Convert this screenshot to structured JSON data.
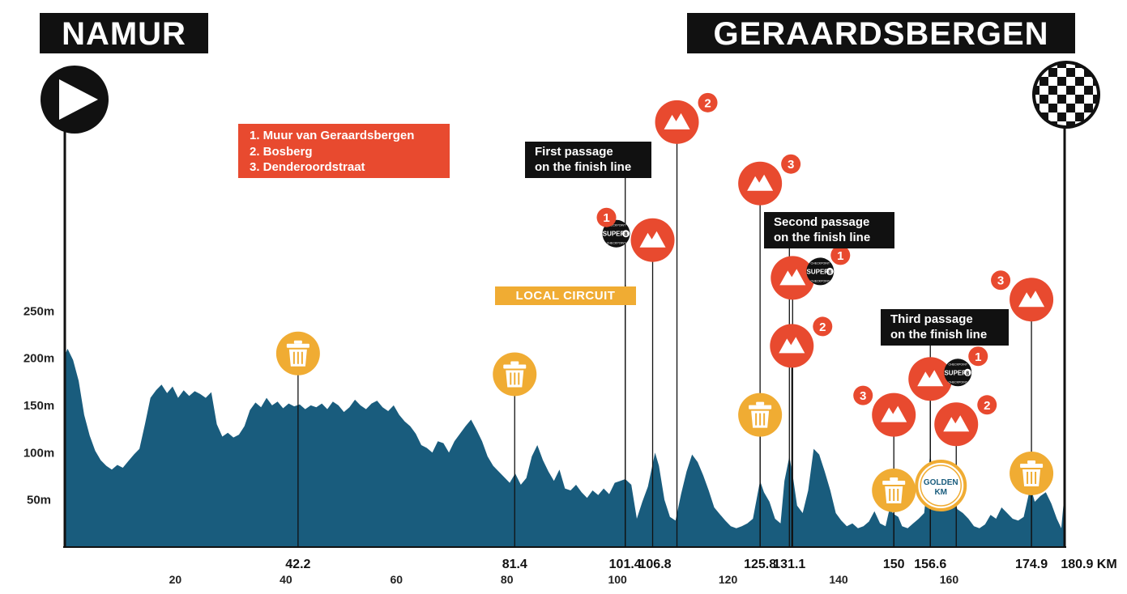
{
  "stage": {
    "start": "NAMUR",
    "finish": "GERAARDSBERGEN"
  },
  "legend": [
    "1. Muur van Geraardsbergen",
    "2. Bosberg",
    "3. Denderoordstraat"
  ],
  "passages": {
    "first": [
      "First passage",
      "on the finish line"
    ],
    "second": [
      "Second passage",
      "on the finish line"
    ],
    "third": [
      "Third passage",
      "on the finish line"
    ]
  },
  "local_circuit_label": "LOCAL CIRCUIT",
  "golden_km_label": [
    "GOLDEN",
    "KM"
  ],
  "super8": {
    "top": "CHECKPOINT",
    "main": "SUPER",
    "digit": "8",
    "bottom": "CHECKPOINT"
  },
  "colors": {
    "profile": "#195c7d",
    "climb": "#e84a2f",
    "feed": "#f0ac33",
    "black": "#111111",
    "golden_ring": "#f0ac33",
    "golden_text": "#195c7d"
  },
  "icons": {
    "start": "play-icon",
    "finish": "checkered-flag-icon",
    "climb": "mountain-icon",
    "feed": "trash-can-icon",
    "super8": "super8-checkpoint-icon",
    "golden_km": "golden-km-icon"
  },
  "chart_data": {
    "type": "area",
    "title": "",
    "xlabel": "",
    "ylabel": "",
    "x_unit": "KM",
    "xlim": [
      0,
      180.9
    ],
    "ylim": [
      0,
      250
    ],
    "y_ticks": [
      50,
      100,
      150,
      200,
      250
    ],
    "y_tick_labels": [
      "50m",
      "100m",
      "150m",
      "200m",
      "250m"
    ],
    "x_ticks_minor": [
      20,
      40,
      60,
      80,
      100,
      120,
      140,
      160
    ],
    "x_ticks_major": [
      42.2,
      81.4,
      101.4,
      106.8,
      125.8,
      131.1,
      150,
      156.6,
      174.9,
      180.9
    ],
    "x_major_labels": [
      "42.2",
      "81.4",
      "101.4",
      "106.8",
      "125.8",
      "131.1",
      "150",
      "156.6",
      "174.9",
      "180.9 KM"
    ],
    "elevation": [
      [
        0,
        203
      ],
      [
        0.5,
        210
      ],
      [
        1.5,
        198
      ],
      [
        2.5,
        176
      ],
      [
        3.5,
        140
      ],
      [
        4.5,
        118
      ],
      [
        5.5,
        102
      ],
      [
        6.5,
        92
      ],
      [
        7.5,
        86
      ],
      [
        8.5,
        82
      ],
      [
        9.5,
        87
      ],
      [
        10.5,
        84
      ],
      [
        11.5,
        91
      ],
      [
        12.5,
        98
      ],
      [
        13.5,
        104
      ],
      [
        14.5,
        130
      ],
      [
        15.5,
        158
      ],
      [
        16.5,
        166
      ],
      [
        17.5,
        172
      ],
      [
        18.5,
        163
      ],
      [
        19.5,
        170
      ],
      [
        20.5,
        158
      ],
      [
        21.5,
        166
      ],
      [
        22.5,
        160
      ],
      [
        23.5,
        165
      ],
      [
        24.5,
        162
      ],
      [
        25.5,
        158
      ],
      [
        26.5,
        164
      ],
      [
        27.5,
        130
      ],
      [
        28.5,
        117
      ],
      [
        29.5,
        121
      ],
      [
        30.5,
        116
      ],
      [
        31.5,
        119
      ],
      [
        32.5,
        128
      ],
      [
        33.5,
        145
      ],
      [
        34.5,
        153
      ],
      [
        35.5,
        148
      ],
      [
        36.5,
        158
      ],
      [
        37.5,
        150
      ],
      [
        38.5,
        154
      ],
      [
        39.5,
        147
      ],
      [
        40.5,
        152
      ],
      [
        41.5,
        149
      ],
      [
        42.5,
        151
      ],
      [
        43.5,
        146
      ],
      [
        44.5,
        150
      ],
      [
        45.5,
        148
      ],
      [
        46.5,
        152
      ],
      [
        47.5,
        146
      ],
      [
        48.5,
        154
      ],
      [
        49.5,
        150
      ],
      [
        50.5,
        143
      ],
      [
        51.5,
        148
      ],
      [
        52.5,
        156
      ],
      [
        53.5,
        150
      ],
      [
        54.5,
        146
      ],
      [
        55.5,
        152
      ],
      [
        56.5,
        155
      ],
      [
        57.5,
        148
      ],
      [
        58.5,
        144
      ],
      [
        59.5,
        150
      ],
      [
        60.5,
        140
      ],
      [
        61.5,
        133
      ],
      [
        62.5,
        128
      ],
      [
        63.5,
        120
      ],
      [
        64.5,
        108
      ],
      [
        65.5,
        105
      ],
      [
        66.5,
        100
      ],
      [
        67.5,
        112
      ],
      [
        68.5,
        110
      ],
      [
        69.5,
        100
      ],
      [
        70.5,
        112
      ],
      [
        71.5,
        120
      ],
      [
        72.5,
        128
      ],
      [
        73.5,
        135
      ],
      [
        74.5,
        124
      ],
      [
        75.5,
        112
      ],
      [
        76.5,
        96
      ],
      [
        77.5,
        86
      ],
      [
        78.5,
        80
      ],
      [
        79.5,
        74
      ],
      [
        80.5,
        68
      ],
      [
        81.5,
        78
      ],
      [
        82.5,
        66
      ],
      [
        83.5,
        73
      ],
      [
        84.5,
        96
      ],
      [
        85.5,
        108
      ],
      [
        86.5,
        92
      ],
      [
        87.5,
        80
      ],
      [
        88.5,
        70
      ],
      [
        89.5,
        82
      ],
      [
        90.5,
        62
      ],
      [
        91.5,
        60
      ],
      [
        92.5,
        66
      ],
      [
        93.5,
        58
      ],
      [
        94.5,
        52
      ],
      [
        95.5,
        60
      ],
      [
        96.5,
        55
      ],
      [
        97.5,
        62
      ],
      [
        98.5,
        56
      ],
      [
        99.5,
        68
      ],
      [
        100.5,
        70
      ],
      [
        101.4,
        72
      ],
      [
        102.5,
        66
      ],
      [
        103.5,
        30
      ],
      [
        104.5,
        48
      ],
      [
        105.5,
        64
      ],
      [
        106.8,
        100
      ],
      [
        107.5,
        86
      ],
      [
        108.5,
        50
      ],
      [
        109.5,
        32
      ],
      [
        110.5,
        28
      ],
      [
        111.5,
        56
      ],
      [
        112.5,
        80
      ],
      [
        113.5,
        98
      ],
      [
        114.5,
        90
      ],
      [
        115.5,
        76
      ],
      [
        116.5,
        60
      ],
      [
        117.5,
        42
      ],
      [
        118.5,
        35
      ],
      [
        119.5,
        28
      ],
      [
        120.5,
        22
      ],
      [
        121.5,
        20
      ],
      [
        122.5,
        22
      ],
      [
        123.5,
        25
      ],
      [
        124.5,
        30
      ],
      [
        125.8,
        70
      ],
      [
        126.5,
        58
      ],
      [
        127.5,
        48
      ],
      [
        128.5,
        30
      ],
      [
        129.5,
        25
      ],
      [
        130.2,
        70
      ],
      [
        131.1,
        96
      ],
      [
        131.8,
        72
      ],
      [
        132.5,
        44
      ],
      [
        133.5,
        36
      ],
      [
        134.5,
        60
      ],
      [
        135.5,
        104
      ],
      [
        136.5,
        98
      ],
      [
        137.5,
        80
      ],
      [
        138.5,
        60
      ],
      [
        139.5,
        36
      ],
      [
        140.5,
        28
      ],
      [
        141.5,
        22
      ],
      [
        142.5,
        25
      ],
      [
        143.5,
        20
      ],
      [
        144.5,
        22
      ],
      [
        145.5,
        27
      ],
      [
        146.5,
        38
      ],
      [
        147.5,
        25
      ],
      [
        148.5,
        22
      ],
      [
        149.2,
        40
      ],
      [
        150,
        35
      ],
      [
        150.8,
        32
      ],
      [
        151.5,
        22
      ],
      [
        152.5,
        20
      ],
      [
        153.5,
        25
      ],
      [
        154.5,
        30
      ],
      [
        155.5,
        36
      ],
      [
        156.6,
        100
      ],
      [
        157.3,
        60
      ],
      [
        158.2,
        88
      ],
      [
        158.8,
        50
      ],
      [
        159.5,
        62
      ],
      [
        160.5,
        52
      ],
      [
        161.5,
        40
      ],
      [
        162.5,
        36
      ],
      [
        163.5,
        30
      ],
      [
        164.5,
        22
      ],
      [
        165.5,
        20
      ],
      [
        166.5,
        24
      ],
      [
        167.5,
        34
      ],
      [
        168.5,
        30
      ],
      [
        169.5,
        42
      ],
      [
        170.5,
        36
      ],
      [
        171.5,
        30
      ],
      [
        172.5,
        28
      ],
      [
        173.5,
        32
      ],
      [
        174.5,
        58
      ],
      [
        174.9,
        60
      ],
      [
        175.5,
        48
      ],
      [
        176.5,
        54
      ],
      [
        177.5,
        58
      ],
      [
        178.5,
        46
      ],
      [
        179.5,
        30
      ],
      [
        180.3,
        20
      ],
      [
        180.9,
        58
      ]
    ],
    "climbs": [
      {
        "km": 106.8,
        "num": "1",
        "num_side": "left",
        "super8": true,
        "head_elev": 325
      },
      {
        "km": 106.8,
        "num": "2",
        "num_side": "right",
        "super8": false,
        "head_elev": 450
      },
      {
        "km": 125.8,
        "num": "3",
        "num_side": "right",
        "super8": false,
        "head_elev": 385
      },
      {
        "km": 131.1,
        "num": "1",
        "num_side": "right",
        "super8": true,
        "head_elev": 285
      },
      {
        "km": 131.1,
        "num": "2",
        "num_side": "right",
        "super8": false,
        "head_elev": 213
      },
      {
        "km": 150,
        "num": "3",
        "num_side": "left",
        "super8": false,
        "head_elev": 140
      },
      {
        "km": 156.6,
        "num": "1",
        "num_side": "right",
        "super8": true,
        "head_elev": 178
      },
      {
        "km": 156.6,
        "num": "2",
        "num_side": "right",
        "super8": false,
        "head_elev": 130
      },
      {
        "km": 174.9,
        "num": "3",
        "num_side": "left",
        "super8": false,
        "head_elev": 262
      }
    ],
    "feed_zones": [
      {
        "km": 42.2,
        "head_elev": 205
      },
      {
        "km": 81.4,
        "head_elev": 183
      },
      {
        "km": 125.8,
        "head_elev": 140
      },
      {
        "km": 150,
        "head_elev": 60
      },
      {
        "km": 174.9,
        "head_elev": 78
      }
    ],
    "golden_km": {
      "km": 156.6
    },
    "finish_passages": [
      101.4,
      131.1,
      156.6
    ],
    "local_circuit_start_km": 101.4
  }
}
